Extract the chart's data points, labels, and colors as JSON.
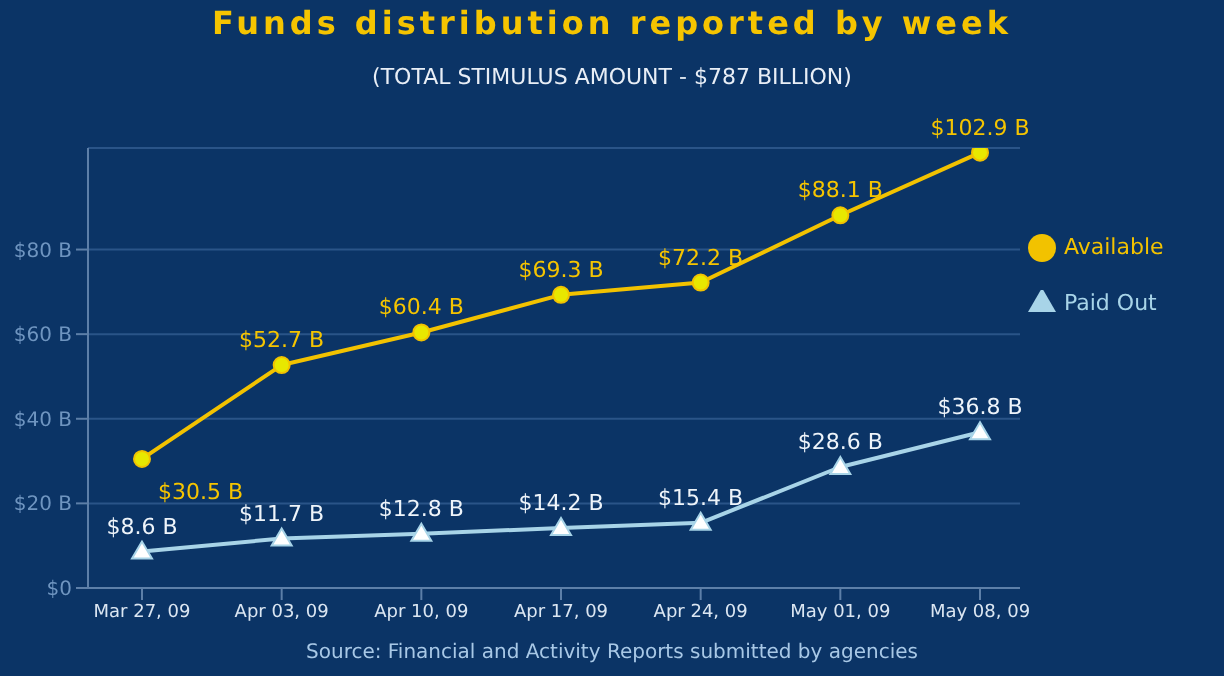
{
  "chart_data": {
    "type": "line",
    "title": "Funds distribution reported by week",
    "subtitle": "(TOTAL STIMULUS AMOUNT - $787 BILLION)",
    "categories": [
      "Mar 27, 09",
      "Apr 03, 09",
      "Apr 10, 09",
      "Apr 17, 09",
      "Apr 24, 09",
      "May 01, 09",
      "May 08, 09"
    ],
    "series": [
      {
        "name": "Available",
        "color": "#f2c200",
        "marker": "circle",
        "values": [
          30.5,
          52.7,
          60.4,
          69.3,
          72.2,
          88.1,
          102.9
        ],
        "value_labels": [
          "$30.5 B",
          "$52.7 B",
          "$60.4 B",
          "$69.3 B",
          "$72.2 B",
          "$88.1 B",
          "$102.9 B"
        ]
      },
      {
        "name": "Paid Out",
        "color": "#a8d4e8",
        "marker": "triangle",
        "values": [
          8.6,
          11.7,
          12.8,
          14.2,
          15.4,
          28.6,
          36.8
        ],
        "value_labels": [
          "$8.6 B",
          "$11.7 B",
          "$12.8 B",
          "$14.2 B",
          "$15.4 B",
          "$28.6 B",
          "$36.8 B"
        ]
      }
    ],
    "ylim": [
      0,
      104
    ],
    "yticks": [
      {
        "value": 0,
        "label": "$0"
      },
      {
        "value": 20,
        "label": "$20 B"
      },
      {
        "value": 40,
        "label": "$40 B"
      },
      {
        "value": 60,
        "label": "$60 B"
      },
      {
        "value": 80,
        "label": "$80 B"
      }
    ],
    "grid": "y",
    "legend": "right",
    "annotations": [
      "Source: Financial and Activity Reports submitted by agencies"
    ]
  }
}
